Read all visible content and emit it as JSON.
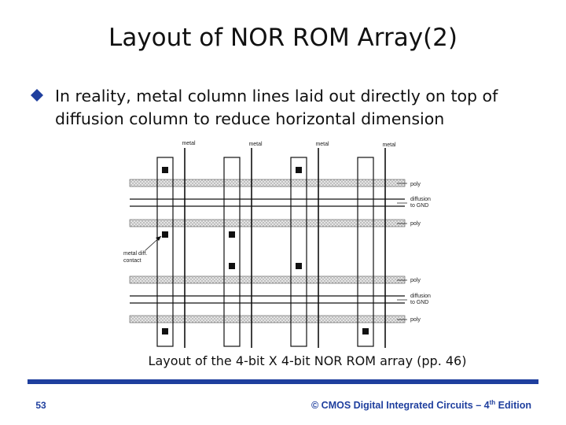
{
  "header": {
    "title": "Layout of NOR ROM Array(2)"
  },
  "bullet": {
    "lines": [
      "In reality, metal column lines laid out directly on top of",
      "diffusion column to reduce horizontal dimension"
    ]
  },
  "figure": {
    "column_labels": [
      "metal",
      "metal",
      "metal",
      "metal"
    ],
    "row_labels": [
      [
        "poly"
      ],
      [
        "diffusion",
        "to GND"
      ],
      [
        "poly"
      ],
      [
        "poly"
      ],
      [
        "diffusion",
        "to GND"
      ],
      [
        "poly"
      ]
    ],
    "contact_label": [
      "metal diff.",
      "contact"
    ],
    "caption": "Layout of the 4-bit X 4-bit NOR ROM array (pp. 46)"
  },
  "footer": {
    "page": "53",
    "source_prefix": "© CMOS Digital Integrated Circuits – 4",
    "source_superscript": "th",
    "source_suffix": " Edition"
  }
}
